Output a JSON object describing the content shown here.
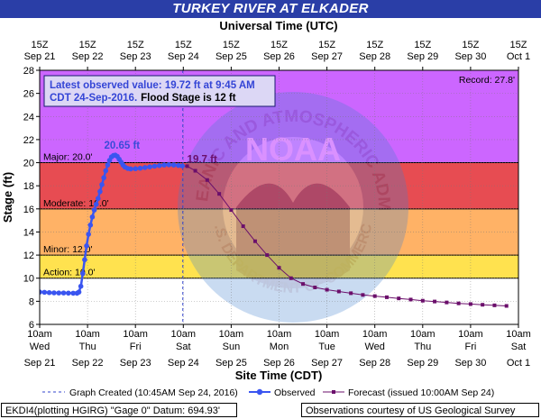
{
  "title": "TURKEY RIVER AT ELKADER",
  "footer": {
    "left": "EKDI4(plotting HGIRG) \"Gage 0\" Datum: 694.93'",
    "right": "Observations courtesy of US Geological Survey"
  },
  "chart_data": {
    "type": "line",
    "top_axis_label": "Universal Time (UTC)",
    "xlabel": "Site Time (CDT)",
    "ylabel": "Stage (ft)",
    "ylim": [
      6,
      28
    ],
    "yticks": [
      6,
      8,
      10,
      12,
      14,
      16,
      18,
      20,
      22,
      24,
      26,
      28
    ],
    "x_range_days": [
      "Sep 21 10am",
      "Oct 1 10am"
    ],
    "bottom_ticks": [
      {
        "time": "10am",
        "dow": "Wed",
        "date": "Sep 21"
      },
      {
        "time": "10am",
        "dow": "Thu",
        "date": "Sep 22"
      },
      {
        "time": "10am",
        "dow": "Fri",
        "date": "Sep 23"
      },
      {
        "time": "10am",
        "dow": "Sat",
        "date": "Sep 24"
      },
      {
        "time": "10am",
        "dow": "Sun",
        "date": "Sep 25"
      },
      {
        "time": "10am",
        "dow": "Mon",
        "date": "Sep 26"
      },
      {
        "time": "10am",
        "dow": "Tue",
        "date": "Sep 27"
      },
      {
        "time": "10am",
        "dow": "Wed",
        "date": "Sep 28"
      },
      {
        "time": "10am",
        "dow": "Thu",
        "date": "Sep 29"
      },
      {
        "time": "10am",
        "dow": "Fri",
        "date": "Sep 30"
      },
      {
        "time": "10am",
        "dow": "Sat",
        "date": "Oct 1"
      }
    ],
    "top_ticks": [
      {
        "time": "15Z",
        "date": "Sep 21"
      },
      {
        "time": "15Z",
        "date": "Sep 22"
      },
      {
        "time": "15Z",
        "date": "Sep 23"
      },
      {
        "time": "15Z",
        "date": "Sep 24"
      },
      {
        "time": "15Z",
        "date": "Sep 25"
      },
      {
        "time": "15Z",
        "date": "Sep 26"
      },
      {
        "time": "15Z",
        "date": "Sep 27"
      },
      {
        "time": "15Z",
        "date": "Sep 28"
      },
      {
        "time": "15Z",
        "date": "Sep 29"
      },
      {
        "time": "15Z",
        "date": "Sep 30"
      },
      {
        "time": "15Z",
        "date": "Oct 1"
      }
    ],
    "flood_bands": [
      {
        "name": "Record",
        "label": "Record: 27.8'",
        "from": 20,
        "to": 28,
        "color": "#cc66ff"
      },
      {
        "name": "Major",
        "label": "Major: 20.0'",
        "from": 16,
        "to": 20,
        "color": "#e74c52"
      },
      {
        "name": "Moderate",
        "label": "Moderate: 16.0'",
        "from": 12,
        "to": 16,
        "color": "#ffb266"
      },
      {
        "name": "Minor",
        "label": "Minor: 12.0'",
        "from": 10,
        "to": 12,
        "color": "#ffe24f"
      },
      {
        "name": "Action",
        "label": "Action: 10.0'",
        "from": 6,
        "to": 10,
        "color": "#ffffff"
      }
    ],
    "info_box": {
      "line1": "Latest observed value: 19.72 ft at 9:45 AM",
      "line2a": "CDT 24-Sep-2016.",
      "line2b": "Flood Stage is 12 ft"
    },
    "graph_created_day": 2.99,
    "annotations": [
      {
        "text": "20.65 ft",
        "day": 1.72,
        "value": 20.65,
        "color": "#3a4bd8"
      },
      {
        "text": "19.7 ft",
        "day": 3.08,
        "value": 19.7,
        "color": "#6b0f6b"
      }
    ],
    "observed": {
      "name": "Observed",
      "color": "#3a55f0",
      "points": [
        [
          0.0,
          8.8
        ],
        [
          0.1,
          8.78
        ],
        [
          0.2,
          8.75
        ],
        [
          0.3,
          8.73
        ],
        [
          0.4,
          8.72
        ],
        [
          0.5,
          8.72
        ],
        [
          0.6,
          8.71
        ],
        [
          0.7,
          8.7
        ],
        [
          0.78,
          8.7
        ],
        [
          0.82,
          8.8
        ],
        [
          0.86,
          9.3
        ],
        [
          0.9,
          10.4
        ],
        [
          0.94,
          11.6
        ],
        [
          0.98,
          12.8
        ],
        [
          1.02,
          13.8
        ],
        [
          1.06,
          14.6
        ],
        [
          1.1,
          15.3
        ],
        [
          1.14,
          15.9
        ],
        [
          1.18,
          16.4
        ],
        [
          1.22,
          16.9
        ],
        [
          1.26,
          17.5
        ],
        [
          1.3,
          18.1
        ],
        [
          1.34,
          18.7
        ],
        [
          1.38,
          19.3
        ],
        [
          1.42,
          19.8
        ],
        [
          1.46,
          20.2
        ],
        [
          1.5,
          20.5
        ],
        [
          1.54,
          20.62
        ],
        [
          1.58,
          20.65
        ],
        [
          1.62,
          20.55
        ],
        [
          1.66,
          20.3
        ],
        [
          1.7,
          20.05
        ],
        [
          1.74,
          19.8
        ],
        [
          1.78,
          19.62
        ],
        [
          1.84,
          19.5
        ],
        [
          1.9,
          19.46
        ],
        [
          2.0,
          19.48
        ],
        [
          2.1,
          19.52
        ],
        [
          2.2,
          19.58
        ],
        [
          2.3,
          19.64
        ],
        [
          2.4,
          19.7
        ],
        [
          2.5,
          19.75
        ],
        [
          2.6,
          19.8
        ],
        [
          2.7,
          19.82
        ],
        [
          2.8,
          19.8
        ],
        [
          2.9,
          19.76
        ],
        [
          2.98,
          19.72
        ]
      ]
    },
    "forecast": {
      "name": "Forecast (issued 10:00AM Sep 24)",
      "color": "#6b0f6b",
      "points": [
        [
          2.98,
          19.72
        ],
        [
          3.08,
          19.7
        ],
        [
          3.25,
          19.3
        ],
        [
          3.5,
          18.5
        ],
        [
          3.75,
          17.3
        ],
        [
          4.0,
          15.9
        ],
        [
          4.25,
          14.5
        ],
        [
          4.5,
          13.2
        ],
        [
          4.75,
          12.0
        ],
        [
          5.0,
          10.9
        ],
        [
          5.25,
          10.0
        ],
        [
          5.5,
          9.5
        ],
        [
          5.75,
          9.2
        ],
        [
          6.0,
          9.0
        ],
        [
          6.25,
          8.85
        ],
        [
          6.5,
          8.7
        ],
        [
          6.75,
          8.55
        ],
        [
          7.0,
          8.45
        ],
        [
          7.25,
          8.35
        ],
        [
          7.5,
          8.25
        ],
        [
          7.75,
          8.15
        ],
        [
          8.0,
          8.05
        ],
        [
          8.25,
          7.98
        ],
        [
          8.5,
          7.9
        ],
        [
          8.75,
          7.82
        ],
        [
          9.0,
          7.76
        ],
        [
          9.25,
          7.7
        ],
        [
          9.5,
          7.65
        ],
        [
          9.75,
          7.6
        ]
      ]
    },
    "legend": {
      "graph_created": "Graph Created (10:45AM Sep 24, 2016)",
      "observed": "Observed",
      "forecast": "Forecast (issued 10:00AM Sep 24)"
    },
    "watermark": {
      "center": "NOAA",
      "ring": "NATIONAL OCEANIC AND ATMOSPHERIC ADMINISTRATION",
      "bottom": "U.S. DEPARTMENT OF COMMERCE"
    }
  }
}
